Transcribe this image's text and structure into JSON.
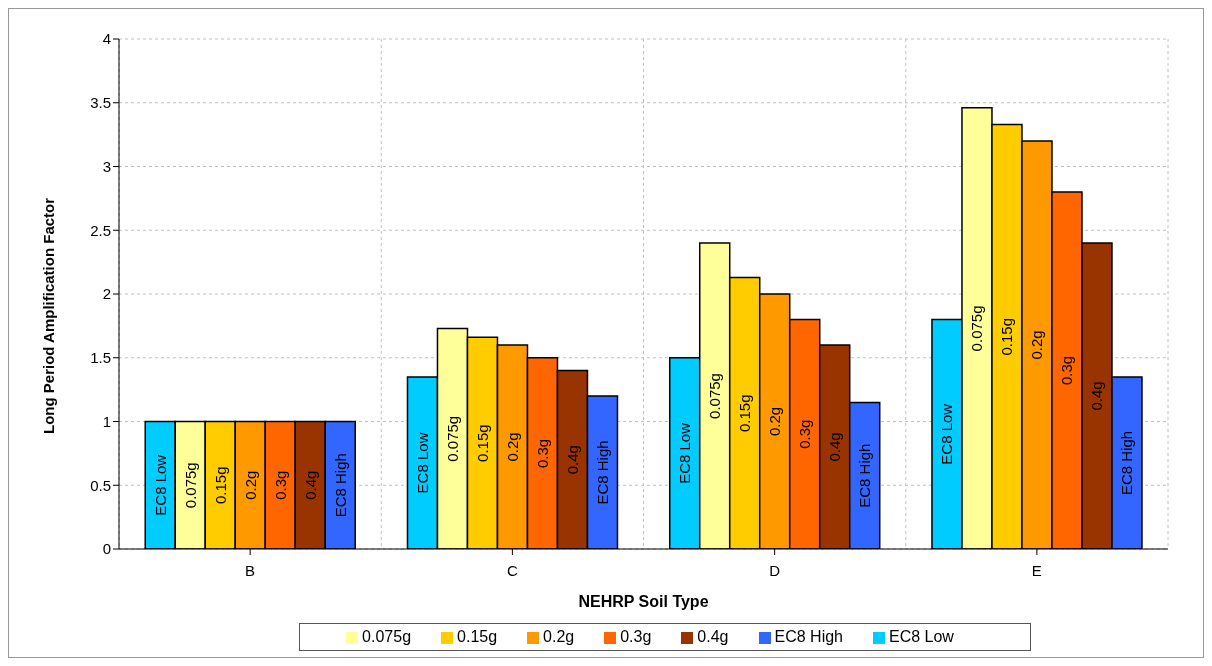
{
  "chart_data": {
    "type": "bar",
    "xlabel": "NEHRP Soil Type",
    "ylabel": "Long Period Amplification Factor",
    "categories": [
      "B",
      "C",
      "D",
      "E"
    ],
    "series": [
      {
        "name": "EC8 Low",
        "color": "#00ccff",
        "values": [
          1,
          1.35,
          1.5,
          1.8
        ]
      },
      {
        "name": "0.075g",
        "color": "#ffff99",
        "values": [
          1,
          1.73,
          2.4,
          3.46
        ]
      },
      {
        "name": "0.15g",
        "color": "#ffcc00",
        "values": [
          1,
          1.66,
          2.13,
          3.33
        ]
      },
      {
        "name": "0.2g",
        "color": "#ff9900",
        "values": [
          1,
          1.6,
          2.0,
          3.2
        ]
      },
      {
        "name": "0.3g",
        "color": "#ff6600",
        "values": [
          1,
          1.5,
          1.8,
          2.8
        ]
      },
      {
        "name": "0.4g",
        "color": "#993300",
        "values": [
          1,
          1.4,
          1.6,
          2.4
        ]
      },
      {
        "name": "EC8 High",
        "color": "#3366ff",
        "values": [
          1,
          1.2,
          1.15,
          1.35
        ]
      }
    ],
    "ylim": [
      0,
      4
    ],
    "yticks": [
      0,
      0.5,
      1,
      1.5,
      2,
      2.5,
      3,
      3.5,
      4
    ],
    "grid": true,
    "legend": "bottom"
  }
}
